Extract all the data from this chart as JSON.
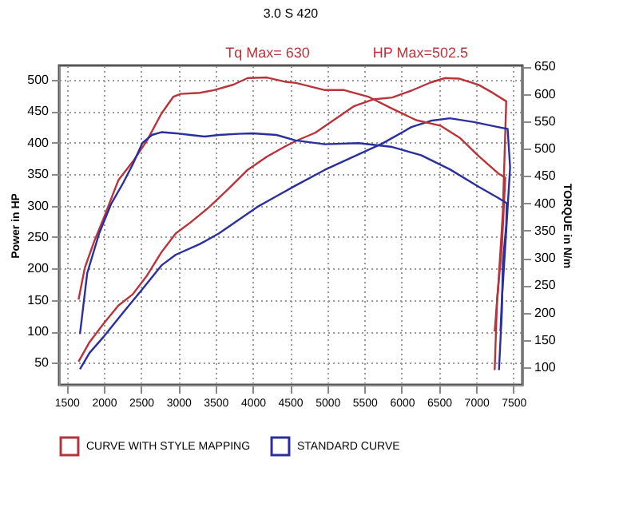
{
  "chart_data": {
    "type": "line",
    "title": "3.0 S 420",
    "ylabel": "Power in HP",
    "y2label": "TORQUE in N/m",
    "xlim": [
      1400,
      7620
    ],
    "xticks": [
      1500,
      2000,
      2500,
      3000,
      3500,
      4000,
      4500,
      5000,
      5500,
      6000,
      6500,
      7000,
      7500
    ],
    "ylim": [
      15,
      523
    ],
    "yticks": [
      50,
      100,
      150,
      200,
      250,
      300,
      350,
      400,
      450,
      500
    ],
    "y2lim": [
      68,
      652
    ],
    "y2ticks": [
      100,
      150,
      200,
      250,
      300,
      350,
      400,
      450,
      500,
      550,
      600,
      650
    ],
    "grid": true,
    "legend": "bottom",
    "line_style": "solid",
    "marker": "none",
    "annotations": [
      "Tq Max= 630",
      "HP Max=502.5"
    ],
    "series": [
      {
        "name": "CURVE WITH STYLE MAPPING",
        "color": "#b8333a",
        "x": [
          1661,
          1809,
          2002,
          2195,
          2388,
          2581,
          2774,
          2967,
          3160,
          3418,
          3675,
          3932,
          4189,
          4447,
          4580,
          4839,
          5097,
          5355,
          5614,
          5872,
          6130,
          6389,
          6583,
          6777,
          7035,
          7229,
          7403,
          7358,
          7293,
          7248
        ],
        "values": [
          52,
          83,
          113,
          141,
          159,
          189,
          226,
          256,
          273,
          298,
          327,
          357,
          378,
          395,
          403,
          416,
          437,
          458,
          469,
          472,
          483,
          496,
          503,
          502,
          492,
          479,
          466,
          290,
          167,
          100
        ]
      },
      {
        "color": "#b8333a",
        "axis": "y2",
        "x": [
          1661,
          1745,
          1873,
          2002,
          2195,
          2388,
          2581,
          2774,
          2935,
          3032,
          3290,
          3482,
          3740,
          3932,
          4189,
          4447,
          4580,
          4968,
          5226,
          5549,
          5872,
          6195,
          6518,
          6777,
          7035,
          7293,
          7390,
          7345,
          7280,
          7248
        ],
        "values": [
          224,
          282,
          331,
          374,
          442,
          476,
          515,
          564,
          595,
          600,
          602,
          607,
          617,
          629,
          630,
          622,
          620,
          607,
          607,
          595,
          573,
          552,
          542,
          520,
          486,
          455,
          447,
          321,
          224,
          95
        ]
      },
      {
        "name": "STANDARD CURVE",
        "color": "#2b2f9e",
        "x": [
          1680,
          1809,
          2002,
          2259,
          2517,
          2774,
          2967,
          3290,
          3547,
          3804,
          4061,
          4318,
          4575,
          4968,
          5355,
          5742,
          6130,
          6389,
          6647,
          6970,
          7293,
          7422,
          7455,
          7390,
          7345,
          7326
        ],
        "values": [
          40,
          66,
          92,
          130,
          167,
          205,
          222,
          239,
          256,
          277,
          298,
          315,
          332,
          357,
          378,
          399,
          425,
          435,
          439,
          433,
          425,
          422,
          361,
          235,
          151,
          100
        ]
      },
      {
        "color": "#2b2f9e",
        "axis": "y2",
        "x": [
          1680,
          1777,
          1938,
          2099,
          2259,
          2388,
          2517,
          2646,
          2774,
          2967,
          3160,
          3354,
          3547,
          3804,
          4000,
          4318,
          4575,
          4968,
          5420,
          5872,
          6260,
          6647,
          7035,
          7293,
          7410,
          7403,
          7358,
          7345,
          7306
        ],
        "values": [
          161,
          272,
          345,
          399,
          437,
          471,
          510,
          525,
          530,
          528,
          525,
          522,
          525,
          527,
          528,
          525,
          515,
          508,
          510,
          503,
          488,
          462,
          430,
          410,
          400,
          360,
          292,
          204,
          95
        ]
      }
    ]
  }
}
